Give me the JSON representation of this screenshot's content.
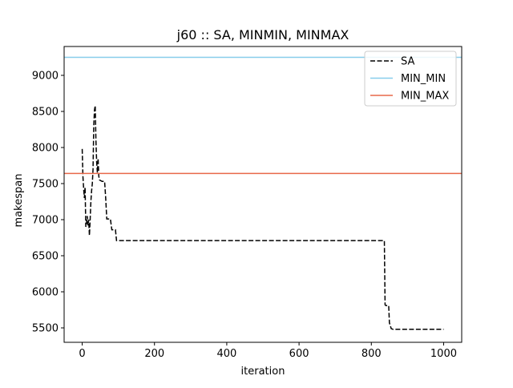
{
  "chart_data": {
    "type": "line",
    "title": "j60 :: SA, MINMIN, MINMAX",
    "xlabel": "iteration",
    "ylabel": "makespan",
    "xlim": [
      -50,
      1050
    ],
    "ylim": [
      5300,
      9400
    ],
    "xticks": [
      0,
      200,
      400,
      600,
      800,
      1000
    ],
    "yticks": [
      5500,
      6000,
      6500,
      7000,
      7500,
      8000,
      8500,
      9000
    ],
    "grid": false,
    "legend_position": "top-right",
    "series": [
      {
        "name": "SA",
        "style": "dashed",
        "color": "#000000",
        "x": [
          0,
          2,
          4,
          6,
          8,
          10,
          12,
          14,
          16,
          18,
          20,
          22,
          24,
          26,
          28,
          30,
          32,
          34,
          36,
          38,
          40,
          42,
          44,
          46,
          48,
          55,
          62,
          65,
          68,
          72,
          78,
          82,
          88,
          92,
          95,
          100,
          200,
          400,
          600,
          800,
          836,
          838,
          840,
          848,
          850,
          855,
          860,
          870,
          900,
          950,
          1000
        ],
        "y": [
          7980,
          7600,
          7430,
          7300,
          7450,
          6900,
          6950,
          7050,
          6920,
          7000,
          6780,
          7000,
          7250,
          7400,
          7500,
          7700,
          8300,
          8520,
          8580,
          8100,
          7800,
          7650,
          7850,
          7600,
          7550,
          7530,
          7530,
          7300,
          7010,
          7010,
          7010,
          6860,
          6860,
          6860,
          6710,
          6710,
          6710,
          6710,
          6710,
          6710,
          6710,
          5820,
          5810,
          5810,
          5570,
          5490,
          5480,
          5480,
          5480,
          5480,
          5480
        ]
      },
      {
        "name": "MIN_MIN",
        "style": "solid",
        "color": "#87ceeb",
        "y_constant": 9250
      },
      {
        "name": "MIN_MAX",
        "style": "solid",
        "color": "#e8694a",
        "y_constant": 7640
      }
    ]
  }
}
